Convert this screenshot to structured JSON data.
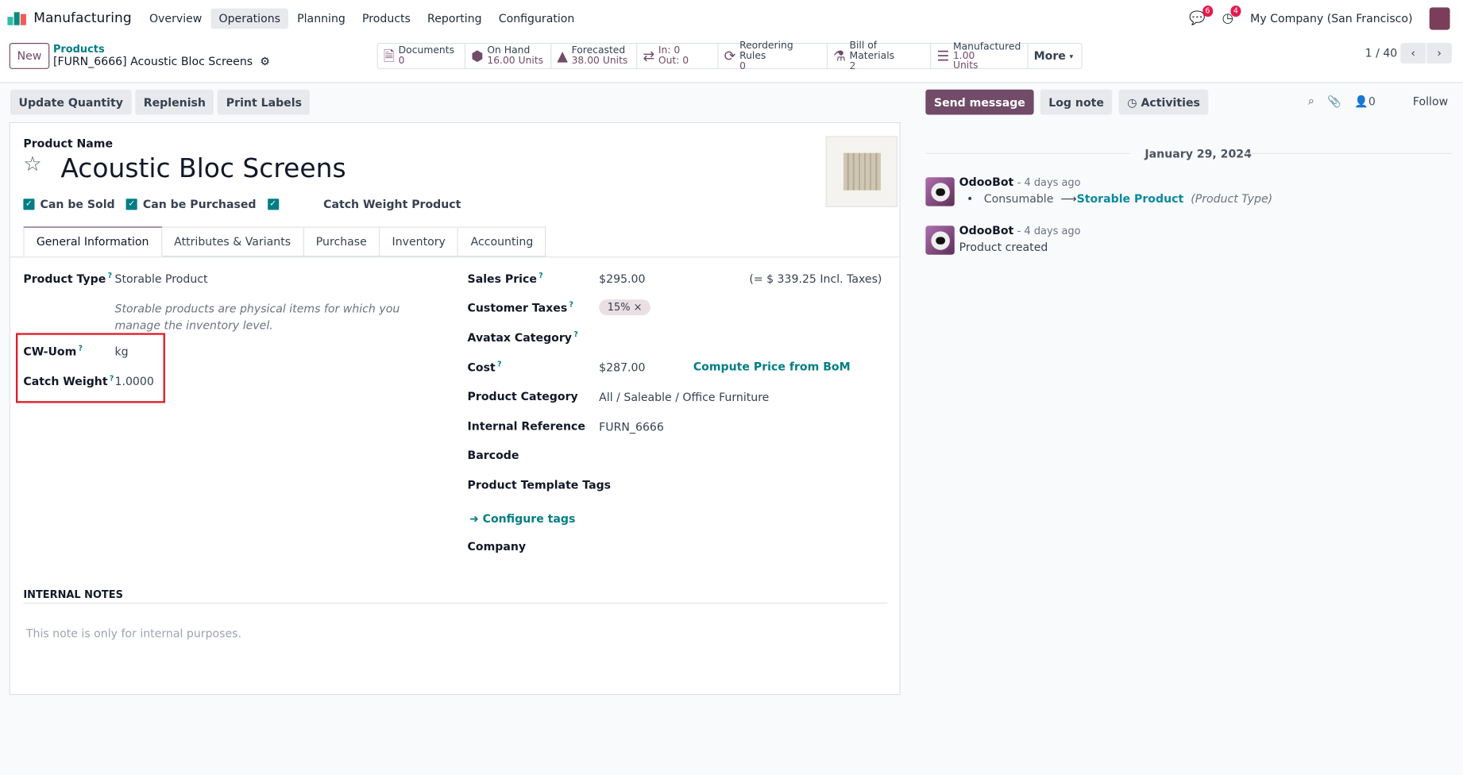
{
  "nav": {
    "app": "Manufacturing",
    "menus": [
      "Overview",
      "Operations",
      "Planning",
      "Products",
      "Reporting",
      "Configuration"
    ],
    "active": "Operations",
    "messages_count": "6",
    "activities_count": "4",
    "company": "My Company (San Francisco)"
  },
  "control": {
    "new_label": "New",
    "breadcrumb_parent": "Products",
    "breadcrumb_current": "[FURN_6666] Acoustic Bloc Screens",
    "pager": "1 / 40",
    "stats": [
      {
        "label": "Documents",
        "value": "0",
        "icon": "file-icon"
      },
      {
        "label": "On Hand",
        "value": "16.00 Units",
        "icon": "cubes-icon"
      },
      {
        "label": "Forecasted",
        "value": "38.00 Units",
        "icon": "area-chart-icon"
      },
      {
        "label": "In: 0",
        "value": "Out: 0",
        "icon": "exchange-icon"
      },
      {
        "label": "Reordering Rules",
        "value": "0",
        "icon": "refresh-icon"
      },
      {
        "label": "Bill of Materials",
        "value": "2",
        "icon": "flask-icon"
      },
      {
        "label": "Manufactured",
        "value": "1.00",
        "value2": "Units",
        "icon": "list-icon"
      }
    ],
    "more": "More"
  },
  "actions": {
    "update_quantity": "Update Quantity",
    "replenish": "Replenish",
    "print_labels": "Print Labels"
  },
  "form": {
    "name_label": "Product Name",
    "name": "Acoustic Bloc Screens",
    "can_be_sold": "Can be Sold",
    "can_be_purchased": "Can be Purchased",
    "catch_weight": "Catch Weight Product",
    "tabs": [
      "General Information",
      "Attributes & Variants",
      "Purchase",
      "Inventory",
      "Accounting"
    ],
    "left": {
      "product_type_label": "Product Type",
      "product_type": "Storable Product",
      "product_type_help": "Storable products are physical items for which you manage the inventory level.",
      "cw_uom_label": "CW-Uom",
      "cw_uom": "kg",
      "catch_weight_label": "Catch Weight",
      "catch_weight_value": "1.0000"
    },
    "right": {
      "sales_price_label": "Sales Price",
      "sales_price": "$295.00",
      "incl_taxes": "(= $ 339.25 Incl. Taxes)",
      "customer_taxes_label": "Customer Taxes",
      "tax_tag": "15%",
      "avatax_label": "Avatax Category",
      "cost_label": "Cost",
      "cost": "$287.00",
      "compute_bom": "Compute Price from BoM",
      "category_label": "Product Category",
      "category": "All / Saleable / Office Furniture",
      "internal_ref_label": "Internal Reference",
      "internal_ref": "FURN_6666",
      "barcode_label": "Barcode",
      "tags_label": "Product Template Tags",
      "configure_tags": "Configure tags",
      "company_label": "Company"
    },
    "notes_label": "INTERNAL NOTES",
    "notes_placeholder": "This note is only for internal purposes."
  },
  "chatter": {
    "send_message": "Send message",
    "log_note": "Log note",
    "activities": "Activities",
    "followers": "0",
    "follow": "Follow",
    "date": "January 29, 2024",
    "messages": [
      {
        "author": "OdooBot",
        "time": "- 4 days ago",
        "old": "Consumable",
        "new": "Storable Product",
        "field": "(Product Type)"
      },
      {
        "author": "OdooBot",
        "time": "- 4 days ago",
        "body": "Product created"
      }
    ]
  },
  "colors": {
    "brand": "#714b67",
    "accent": "#017e84",
    "highlight": "#e11d2a"
  }
}
